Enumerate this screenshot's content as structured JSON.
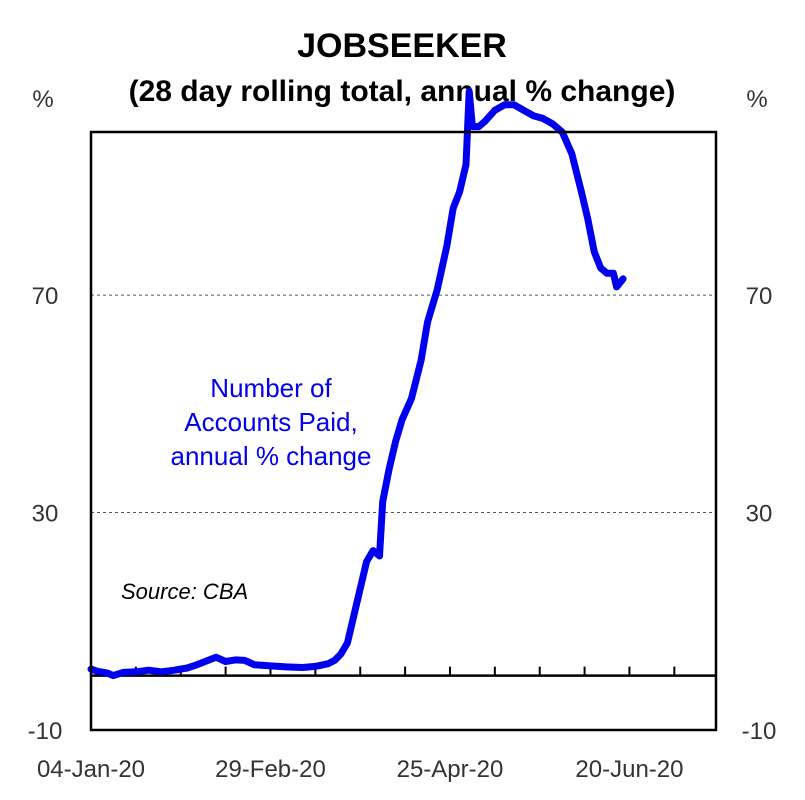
{
  "chart_data": {
    "type": "line",
    "title": "JOBSEEKER",
    "subtitle": "(28 day rolling total, annual % change)",
    "ylabel_left": "%",
    "ylabel_right": "%",
    "ylim": [
      -10,
      100
    ],
    "y_ticks": [
      -10,
      30,
      70
    ],
    "grid_lines_at": [
      30,
      70
    ],
    "x_range": [
      "2020-01-04",
      "2020-07-17"
    ],
    "x_tick_labels": [
      "04-Jan-20",
      "29-Feb-20",
      "25-Apr-20",
      "20-Jun-20"
    ],
    "x_tick_dates": [
      "2020-01-04",
      "2020-02-29",
      "2020-04-25",
      "2020-06-20"
    ],
    "annotation": [
      "Number of",
      "Accounts Paid,",
      "annual % change"
    ],
    "source": "Source: CBA",
    "series": [
      {
        "color": "#0000ee",
        "points": [
          [
            "2020-01-04",
            1.2
          ],
          [
            "2020-01-06",
            0.8
          ],
          [
            "2020-01-09",
            0.5
          ],
          [
            "2020-01-11",
            0.0
          ],
          [
            "2020-01-14",
            0.6
          ],
          [
            "2020-01-18",
            0.7
          ],
          [
            "2020-01-22",
            1.0
          ],
          [
            "2020-01-26",
            0.7
          ],
          [
            "2020-01-30",
            1.0
          ],
          [
            "2020-02-03",
            1.4
          ],
          [
            "2020-02-06",
            2.0
          ],
          [
            "2020-02-09",
            2.7
          ],
          [
            "2020-02-12",
            3.4
          ],
          [
            "2020-02-15",
            2.6
          ],
          [
            "2020-02-18",
            2.9
          ],
          [
            "2020-02-21",
            2.8
          ],
          [
            "2020-02-24",
            2.0
          ],
          [
            "2020-02-29",
            1.8
          ],
          [
            "2020-03-05",
            1.6
          ],
          [
            "2020-03-10",
            1.5
          ],
          [
            "2020-03-14",
            1.7
          ],
          [
            "2020-03-18",
            2.2
          ],
          [
            "2020-03-20",
            2.8
          ],
          [
            "2020-03-22",
            4.0
          ],
          [
            "2020-03-24",
            6.0
          ],
          [
            "2020-03-26",
            11.0
          ],
          [
            "2020-03-28",
            16.0
          ],
          [
            "2020-03-30",
            21.0
          ],
          [
            "2020-04-01",
            23.0
          ],
          [
            "2020-04-03",
            22.0
          ],
          [
            "2020-04-04",
            32.0
          ],
          [
            "2020-04-06",
            38.0
          ],
          [
            "2020-04-08",
            43.0
          ],
          [
            "2020-04-10",
            47.0
          ],
          [
            "2020-04-13",
            51.0
          ],
          [
            "2020-04-16",
            58.0
          ],
          [
            "2020-04-18",
            65.0
          ],
          [
            "2020-04-21",
            71.0
          ],
          [
            "2020-04-24",
            79.0
          ],
          [
            "2020-04-26",
            86.0
          ],
          [
            "2020-04-28",
            89.0
          ],
          [
            "2020-04-30",
            94.0
          ],
          [
            "2020-05-01",
            107.5
          ],
          [
            "2020-05-02",
            101.0
          ],
          [
            "2020-05-04",
            101.0
          ],
          [
            "2020-05-06",
            102.0
          ],
          [
            "2020-05-09",
            104.0
          ],
          [
            "2020-05-12",
            105.0
          ],
          [
            "2020-05-15",
            105.0
          ],
          [
            "2020-05-18",
            104.0
          ],
          [
            "2020-05-21",
            103.0
          ],
          [
            "2020-05-24",
            102.5
          ],
          [
            "2020-05-27",
            101.5
          ],
          [
            "2020-05-30",
            100.0
          ],
          [
            "2020-06-02",
            96.0
          ],
          [
            "2020-06-05",
            89.0
          ],
          [
            "2020-06-07",
            84.0
          ],
          [
            "2020-06-09",
            78.0
          ],
          [
            "2020-06-11",
            75.0
          ],
          [
            "2020-06-13",
            74.0
          ],
          [
            "2020-06-15",
            74.0
          ],
          [
            "2020-06-16",
            71.5
          ],
          [
            "2020-06-18",
            73.0
          ]
        ]
      }
    ]
  }
}
